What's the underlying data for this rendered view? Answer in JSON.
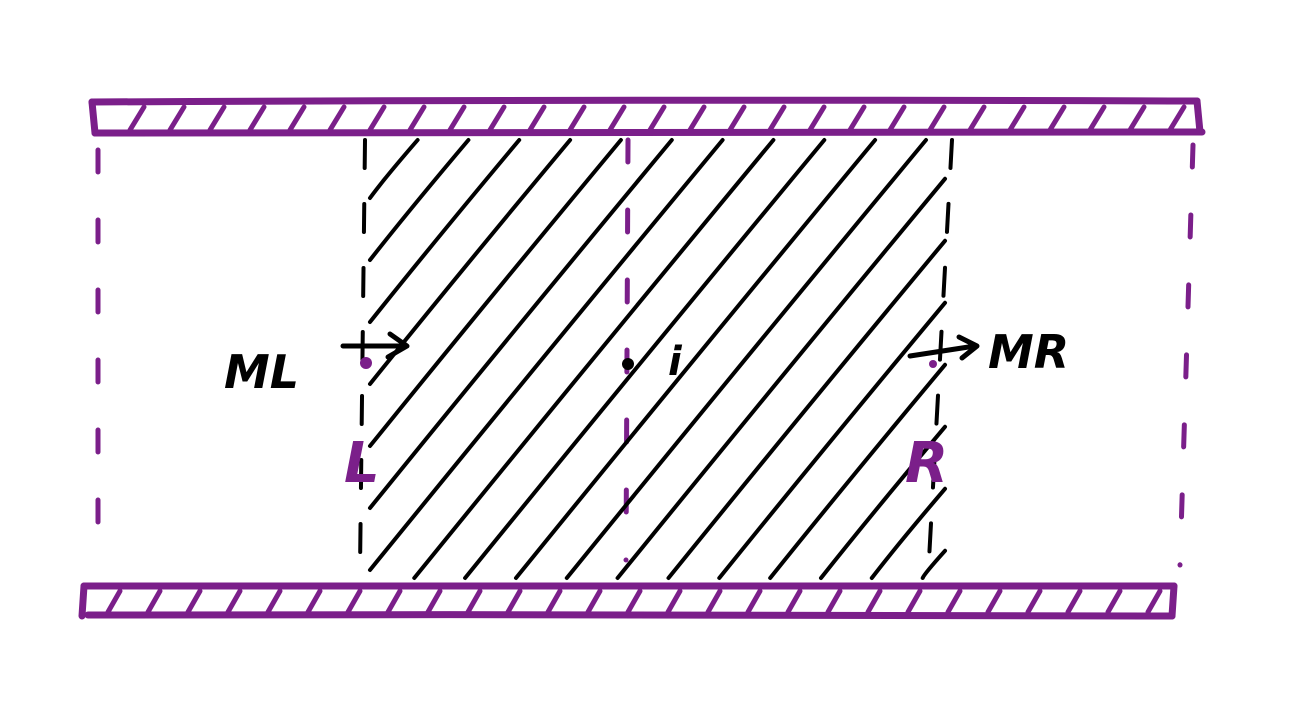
{
  "colors": {
    "ink": "#000000",
    "wall": "#7b1f8a",
    "background": "#ffffff"
  },
  "labels": {
    "ml": "ML",
    "mr": "MR",
    "left_boundary": "L",
    "right_boundary": "R",
    "center_point": "i"
  }
}
